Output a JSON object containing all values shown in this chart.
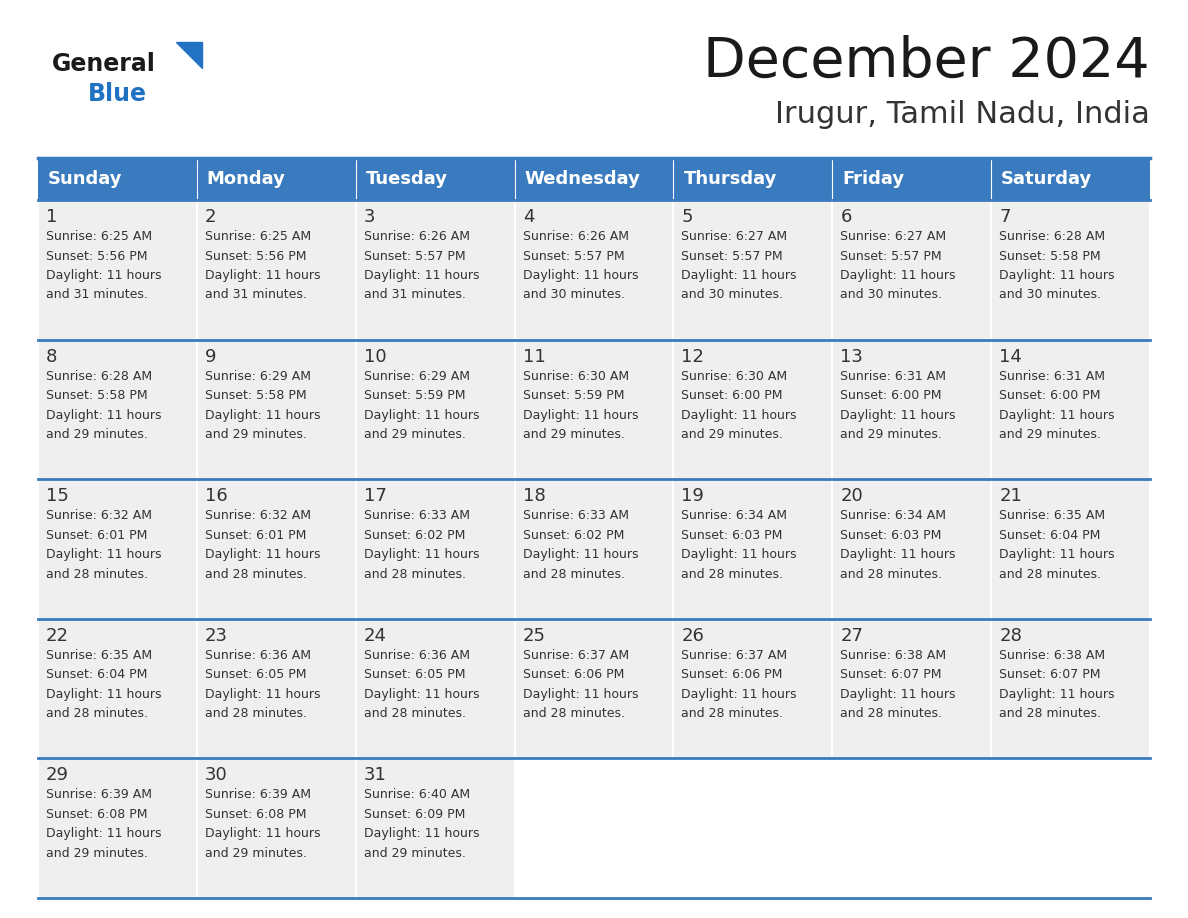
{
  "title": "December 2024",
  "subtitle": "Irugur, Tamil Nadu, India",
  "header_color": "#3a7abf",
  "header_text_color": "#ffffff",
  "day_names": [
    "Sunday",
    "Monday",
    "Tuesday",
    "Wednesday",
    "Thursday",
    "Friday",
    "Saturday"
  ],
  "background_color": "#ffffff",
  "cell_bg_color": "#efefef",
  "border_color": "#3a7abf",
  "text_color": "#333333",
  "days": [
    {
      "day": 1,
      "col": 0,
      "row": 0,
      "sunrise": "6:25 AM",
      "sunset": "5:56 PM",
      "daylight": "11 hours and 31 minutes."
    },
    {
      "day": 2,
      "col": 1,
      "row": 0,
      "sunrise": "6:25 AM",
      "sunset": "5:56 PM",
      "daylight": "11 hours and 31 minutes."
    },
    {
      "day": 3,
      "col": 2,
      "row": 0,
      "sunrise": "6:26 AM",
      "sunset": "5:57 PM",
      "daylight": "11 hours and 31 minutes."
    },
    {
      "day": 4,
      "col": 3,
      "row": 0,
      "sunrise": "6:26 AM",
      "sunset": "5:57 PM",
      "daylight": "11 hours and 30 minutes."
    },
    {
      "day": 5,
      "col": 4,
      "row": 0,
      "sunrise": "6:27 AM",
      "sunset": "5:57 PM",
      "daylight": "11 hours and 30 minutes."
    },
    {
      "day": 6,
      "col": 5,
      "row": 0,
      "sunrise": "6:27 AM",
      "sunset": "5:57 PM",
      "daylight": "11 hours and 30 minutes."
    },
    {
      "day": 7,
      "col": 6,
      "row": 0,
      "sunrise": "6:28 AM",
      "sunset": "5:58 PM",
      "daylight": "11 hours and 30 minutes."
    },
    {
      "day": 8,
      "col": 0,
      "row": 1,
      "sunrise": "6:28 AM",
      "sunset": "5:58 PM",
      "daylight": "11 hours and 29 minutes."
    },
    {
      "day": 9,
      "col": 1,
      "row": 1,
      "sunrise": "6:29 AM",
      "sunset": "5:58 PM",
      "daylight": "11 hours and 29 minutes."
    },
    {
      "day": 10,
      "col": 2,
      "row": 1,
      "sunrise": "6:29 AM",
      "sunset": "5:59 PM",
      "daylight": "11 hours and 29 minutes."
    },
    {
      "day": 11,
      "col": 3,
      "row": 1,
      "sunrise": "6:30 AM",
      "sunset": "5:59 PM",
      "daylight": "11 hours and 29 minutes."
    },
    {
      "day": 12,
      "col": 4,
      "row": 1,
      "sunrise": "6:30 AM",
      "sunset": "6:00 PM",
      "daylight": "11 hours and 29 minutes."
    },
    {
      "day": 13,
      "col": 5,
      "row": 1,
      "sunrise": "6:31 AM",
      "sunset": "6:00 PM",
      "daylight": "11 hours and 29 minutes."
    },
    {
      "day": 14,
      "col": 6,
      "row": 1,
      "sunrise": "6:31 AM",
      "sunset": "6:00 PM",
      "daylight": "11 hours and 29 minutes."
    },
    {
      "day": 15,
      "col": 0,
      "row": 2,
      "sunrise": "6:32 AM",
      "sunset": "6:01 PM",
      "daylight": "11 hours and 28 minutes."
    },
    {
      "day": 16,
      "col": 1,
      "row": 2,
      "sunrise": "6:32 AM",
      "sunset": "6:01 PM",
      "daylight": "11 hours and 28 minutes."
    },
    {
      "day": 17,
      "col": 2,
      "row": 2,
      "sunrise": "6:33 AM",
      "sunset": "6:02 PM",
      "daylight": "11 hours and 28 minutes."
    },
    {
      "day": 18,
      "col": 3,
      "row": 2,
      "sunrise": "6:33 AM",
      "sunset": "6:02 PM",
      "daylight": "11 hours and 28 minutes."
    },
    {
      "day": 19,
      "col": 4,
      "row": 2,
      "sunrise": "6:34 AM",
      "sunset": "6:03 PM",
      "daylight": "11 hours and 28 minutes."
    },
    {
      "day": 20,
      "col": 5,
      "row": 2,
      "sunrise": "6:34 AM",
      "sunset": "6:03 PM",
      "daylight": "11 hours and 28 minutes."
    },
    {
      "day": 21,
      "col": 6,
      "row": 2,
      "sunrise": "6:35 AM",
      "sunset": "6:04 PM",
      "daylight": "11 hours and 28 minutes."
    },
    {
      "day": 22,
      "col": 0,
      "row": 3,
      "sunrise": "6:35 AM",
      "sunset": "6:04 PM",
      "daylight": "11 hours and 28 minutes."
    },
    {
      "day": 23,
      "col": 1,
      "row": 3,
      "sunrise": "6:36 AM",
      "sunset": "6:05 PM",
      "daylight": "11 hours and 28 minutes."
    },
    {
      "day": 24,
      "col": 2,
      "row": 3,
      "sunrise": "6:36 AM",
      "sunset": "6:05 PM",
      "daylight": "11 hours and 28 minutes."
    },
    {
      "day": 25,
      "col": 3,
      "row": 3,
      "sunrise": "6:37 AM",
      "sunset": "6:06 PM",
      "daylight": "11 hours and 28 minutes."
    },
    {
      "day": 26,
      "col": 4,
      "row": 3,
      "sunrise": "6:37 AM",
      "sunset": "6:06 PM",
      "daylight": "11 hours and 28 minutes."
    },
    {
      "day": 27,
      "col": 5,
      "row": 3,
      "sunrise": "6:38 AM",
      "sunset": "6:07 PM",
      "daylight": "11 hours and 28 minutes."
    },
    {
      "day": 28,
      "col": 6,
      "row": 3,
      "sunrise": "6:38 AM",
      "sunset": "6:07 PM",
      "daylight": "11 hours and 28 minutes."
    },
    {
      "day": 29,
      "col": 0,
      "row": 4,
      "sunrise": "6:39 AM",
      "sunset": "6:08 PM",
      "daylight": "11 hours and 29 minutes."
    },
    {
      "day": 30,
      "col": 1,
      "row": 4,
      "sunrise": "6:39 AM",
      "sunset": "6:08 PM",
      "daylight": "11 hours and 29 minutes."
    },
    {
      "day": 31,
      "col": 2,
      "row": 4,
      "sunrise": "6:40 AM",
      "sunset": "6:09 PM",
      "daylight": "11 hours and 29 minutes."
    }
  ]
}
